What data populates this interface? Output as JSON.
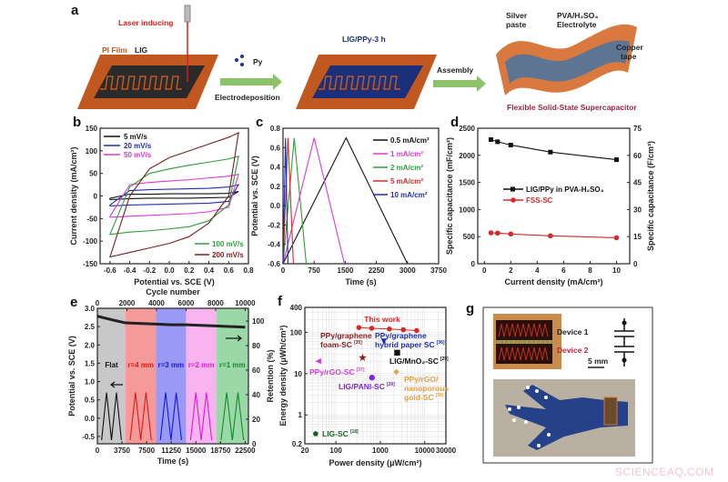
{
  "panel_a": {
    "letter": "a",
    "laser_label": "Laser inducing",
    "pi_film_label": "PI Film",
    "lig_label": "LIG",
    "py_label": "Py",
    "electrodeposition_label": "Electrodeposition",
    "lig_ppy_label": "LIG/PPy-3 h",
    "assembly_label": "Assembly",
    "silver_label_1": "Silver",
    "silver_label_2": "paste",
    "electrolyte_label_1": "PVA/H₂SO₄",
    "electrolyte_label_2": "Electrolyte",
    "copper_label_1": "Copper",
    "copper_label_2": "tape",
    "device_caption": "Flexible Solid-State Supercapacitor",
    "colors": {
      "pi_film": "#c0581f",
      "lig": "#2a2a2a",
      "lig_ppy": "#1c2f7a",
      "caption": "#9b2343",
      "laser": "#d62020",
      "arrow": "#8cc36a"
    }
  },
  "chart_data": [
    {
      "id": "b",
      "letter": "b",
      "type": "line",
      "xlabel": "Potential vs. SCE (V)",
      "ylabel": "Current density (mA/cm²)",
      "xlim": [
        -0.7,
        0.8
      ],
      "ylim": [
        -150,
        150
      ],
      "xticks": [
        -0.6,
        -0.4,
        -0.2,
        0.0,
        0.2,
        0.4,
        0.6,
        0.8
      ],
      "xtick_labels": [
        "-0.6",
        "-0.4",
        "-0.2",
        "0.0",
        "0.2",
        "0.4",
        "0.6",
        "0.8"
      ],
      "yticks": [
        -150,
        -100,
        -50,
        0,
        50,
        100,
        150
      ],
      "x": [
        -0.6,
        -0.4,
        -0.2,
        0.0,
        0.2,
        0.4,
        0.6,
        0.7
      ],
      "series": [
        {
          "name": "5 mV/s",
          "color": "#111111",
          "anodic": [
            -5,
            4,
            4,
            5,
            5,
            5,
            6,
            10
          ],
          "cathodic": [
            -8,
            -6,
            -5,
            -5,
            -5,
            -4,
            -3,
            10
          ]
        },
        {
          "name": "20 mV/s",
          "color": "#1f2fb0",
          "anodic": [
            -20,
            12,
            14,
            15,
            16,
            17,
            20,
            25
          ],
          "cathodic": [
            -22,
            -20,
            -19,
            -18,
            -17,
            -16,
            -12,
            25
          ]
        },
        {
          "name": "50 mV/s",
          "color": "#d63bd6",
          "anodic": [
            -45,
            25,
            30,
            33,
            36,
            40,
            44,
            48
          ],
          "cathodic": [
            -47,
            -45,
            -43,
            -41,
            -39,
            -35,
            -25,
            48
          ]
        },
        {
          "name": "100 mV/s",
          "color": "#2f9e3a",
          "anodic": [
            -85,
            20,
            50,
            60,
            68,
            75,
            82,
            88
          ],
          "cathodic": [
            -85,
            -80,
            -77,
            -73,
            -68,
            -55,
            -20,
            88
          ]
        },
        {
          "name": "200 mV/s",
          "color": "#7a1f1f",
          "anodic": [
            -135,
            0,
            60,
            85,
            100,
            115,
            130,
            140
          ],
          "cathodic": [
            -135,
            -125,
            -115,
            -105,
            -90,
            -60,
            0,
            140
          ]
        }
      ]
    },
    {
      "id": "c",
      "letter": "c",
      "type": "line",
      "xlabel": "Time (s)",
      "ylabel": "Potential vs. SCE (V)",
      "xlim": [
        0,
        3750
      ],
      "ylim": [
        -0.6,
        0.8
      ],
      "xticks": [
        0,
        750,
        1500,
        2250,
        3000,
        3750
      ],
      "yticks": [
        -0.6,
        -0.4,
        -0.2,
        0.0,
        0.2,
        0.4,
        0.6,
        0.8
      ],
      "ytick_labels": [
        "-0.6",
        "-0.4",
        "-0.2",
        "0.0",
        "0.2",
        "0.4",
        "0.6",
        "0.8"
      ],
      "series": [
        {
          "name": "0.5 mA/cm²",
          "color": "#111111",
          "t": [
            0,
            1520,
            3000
          ],
          "v": [
            -0.6,
            0.7,
            -0.6
          ]
        },
        {
          "name": "1 mA/cm²",
          "color": "#d63bd6",
          "t": [
            0,
            750,
            1480
          ],
          "v": [
            -0.6,
            0.7,
            -0.6
          ]
        },
        {
          "name": "2 mA/cm²",
          "color": "#2f9e3a",
          "t": [
            0,
            270,
            560
          ],
          "v": [
            -0.6,
            0.7,
            -0.6
          ]
        },
        {
          "name": "5 mA/cm²",
          "color": "#d42a2a",
          "t": [
            0,
            120,
            250
          ],
          "v": [
            -0.6,
            0.7,
            -0.6
          ]
        },
        {
          "name": "10 mA/cm²",
          "color": "#1f2fb0",
          "t": [
            0,
            60,
            120
          ],
          "v": [
            -0.6,
            0.7,
            -0.6
          ]
        }
      ]
    },
    {
      "id": "d",
      "letter": "d",
      "type": "line",
      "xlabel": "Current density (mA/cm²)",
      "ylabel": "Specific capacitance (mF/cm²)",
      "y2label": "Specific capacitance (F/cm³)",
      "xlim": [
        -0.5,
        11
      ],
      "ylim": [
        0,
        2500
      ],
      "y2lim": [
        0,
        75
      ],
      "xticks": [
        0,
        2,
        4,
        6,
        8,
        10
      ],
      "yticks": [
        0,
        500,
        1000,
        1500,
        2000,
        2500
      ],
      "y2ticks": [
        0,
        15,
        30,
        45,
        60,
        75
      ],
      "x": [
        0.5,
        1,
        2,
        5,
        10
      ],
      "series": [
        {
          "name": "LIG/PPy in PVA-H₂SO₄",
          "color": "#111111",
          "marker": "square",
          "values": [
            2290,
            2250,
            2190,
            2060,
            1920
          ]
        },
        {
          "name": "FSS-SC",
          "color": "#d42a2a",
          "marker": "circle",
          "values": [
            570,
            565,
            548,
            515,
            480
          ]
        }
      ]
    },
    {
      "id": "e",
      "letter": "e",
      "type": "line",
      "xlabel": "Time (s)",
      "x2label": "Cycle number",
      "ylabel": "Potential vs. SCE (V)",
      "y2label": "Retention (%)",
      "xlim": [
        0,
        23000
      ],
      "x2lim": [
        0,
        10220
      ],
      "ylim": [
        -0.7,
        3.0
      ],
      "y2lim": [
        0,
        110.4
      ],
      "xticks": [
        0,
        3750,
        7500,
        11250,
        15000,
        18750,
        22500
      ],
      "x2ticks": [
        0,
        2000,
        4000,
        6000,
        8000,
        10000
      ],
      "yticks": [
        -0.5,
        0.0,
        0.5,
        1.0,
        1.5,
        2.0,
        2.5,
        3.0
      ],
      "ytick_labels": [
        "-0.5",
        "0.0",
        "0.5",
        "1.0",
        "1.5",
        "2.0",
        "2.5",
        "3.0"
      ],
      "y2ticks": [
        0,
        20,
        40,
        60,
        80,
        100
      ],
      "bands": [
        {
          "label": "Flat",
          "start": 0,
          "end": 4300,
          "fill": "#c8c8c8",
          "line": "#111111"
        },
        {
          "label": "r=4 mm",
          "start": 4300,
          "end": 8900,
          "fill": "#f59a9a",
          "line": "#e01818"
        },
        {
          "label": "r=3 mm",
          "start": 8900,
          "end": 13500,
          "fill": "#9a9af5",
          "line": "#1818d8"
        },
        {
          "label": "r=2 mm",
          "start": 13500,
          "end": 18100,
          "fill": "#f8b4ee",
          "line": "#e018e0"
        },
        {
          "label": "r=1 mm",
          "start": 18100,
          "end": 23000,
          "fill": "#9ad8a8",
          "line": "#148a2c"
        }
      ],
      "retention": {
        "cycles": [
          0,
          500,
          1000,
          1900,
          3000,
          4000,
          5000,
          6000,
          7000,
          8000,
          9000,
          10000
        ],
        "values": [
          104,
          102.5,
          101,
          98.5,
          98,
          97.5,
          97,
          97,
          96.5,
          96,
          95.5,
          95
        ]
      },
      "gcd_potential_range": [
        -0.6,
        0.7
      ],
      "gcd_cycles_per_band": 2,
      "arrow_left": "potential axis",
      "arrow_right": "retention axis"
    },
    {
      "id": "f",
      "letter": "f",
      "type": "scatter",
      "xlabel": "Power density (μW/cm²)",
      "ylabel": "Energy density (μWh/cm²)",
      "xscale": "log",
      "yscale": "log",
      "xlim": [
        20,
        30000
      ],
      "ylim": [
        0.2,
        400
      ],
      "xticks": [
        20,
        100,
        1000,
        10000,
        30000
      ],
      "yticks": [
        0.2,
        1,
        10,
        100,
        400
      ],
      "grid": true,
      "this_work": {
        "label": "This work",
        "color": "#d42a2a",
        "x": [
          330,
          640,
          1600,
          3300,
          6600
        ],
        "y": [
          130,
          125,
          120,
          115,
          110
        ]
      },
      "points": [
        {
          "label": "PPy/graphene foam-SC",
          "lines": [
            "PPy/graphene",
            "foam-SC"
          ],
          "ref": "[35]",
          "x": 400,
          "y": 24,
          "color": "#8b1c1c",
          "marker": "star"
        },
        {
          "label": "PPy/graphene hybrid paper SC",
          "lines": [
            "PPy/graphene",
            "hybrid paper SC"
          ],
          "ref": "[36]",
          "x": 1200,
          "y": 60,
          "color": "#1f2fb0",
          "marker": "triangle-down"
        },
        {
          "label": "LIG/MnO₂-SC",
          "lines": [
            "LIG/MnO₂-SC"
          ],
          "ref": "[29]",
          "x": 2400,
          "y": 32,
          "color": "#111111",
          "marker": "square"
        },
        {
          "label": "PPy/rGO-SC",
          "lines": [
            "PPy/rGO-SC"
          ],
          "ref": "[37]",
          "x": 40,
          "y": 20,
          "color": "#d63bd6",
          "marker": "triangle-left"
        },
        {
          "label": "PPy/rGO/nanoporous gold-SC",
          "lines": [
            "PPy/rGO/",
            "nanoporous",
            "gold-SC"
          ],
          "ref": "[39]",
          "x": 2300,
          "y": 11,
          "color": "#e8a040",
          "marker": "diamond"
        },
        {
          "label": "LIG/PANI-SC",
          "lines": [
            "LIG/PANI-SC"
          ],
          "ref": "[28]",
          "x": 650,
          "y": 8,
          "color": "#7a2ad0",
          "marker": "circle"
        },
        {
          "label": "LIG-SC",
          "lines": [
            "LIG-SC"
          ],
          "ref": "[18]",
          "x": 35,
          "y": 0.35,
          "color": "#1f5e2a",
          "marker": "pentagon"
        }
      ]
    }
  ],
  "panel_g": {
    "letter": "g",
    "device1_label": "Device 1",
    "device2_label": "Device 2",
    "scale_bar_label": "5 mm",
    "circuit_icon": "two-capacitors-in-series",
    "photo": "glove-with-LEDs-and-wrist-supercapacitor"
  },
  "watermark": "SCIENCEAQ.COM"
}
